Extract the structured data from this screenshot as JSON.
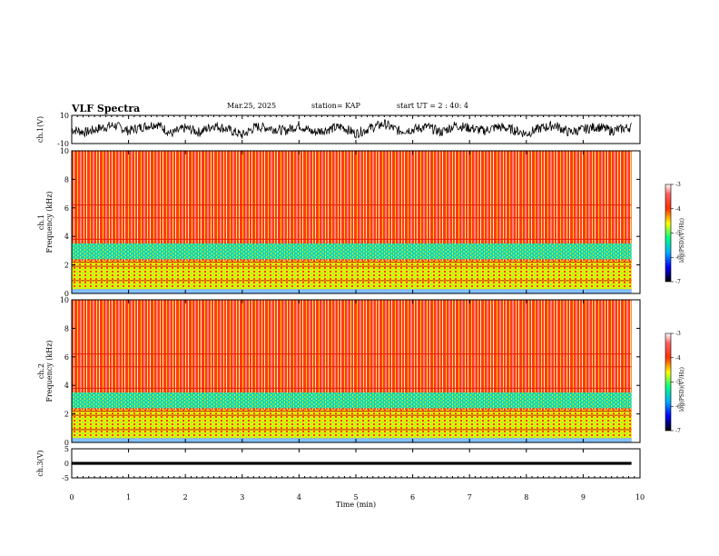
{
  "header": {
    "title": "VLF Spectra",
    "date": "Mar.25, 2025",
    "station": "station= KAP",
    "start": "start  UT  =   2  : 40: 4"
  },
  "chart_data": [
    {
      "type": "line",
      "panel": "ch1-waveform",
      "ylabel": "ch.1(V)",
      "ylim": [
        -10,
        10
      ],
      "yticks": [
        10,
        -10
      ],
      "xlim": [
        0,
        9.85
      ],
      "x": [
        0,
        0.25,
        0.5,
        0.75,
        1,
        1.25,
        1.5,
        1.75,
        2,
        2.25,
        2.5,
        2.75,
        3,
        3.25,
        3.5,
        3.75,
        4,
        4.25,
        4.5,
        4.75,
        5,
        5.25,
        5.5,
        5.75,
        6,
        6.25,
        6.5,
        6.75,
        7,
        7.25,
        7.5,
        7.75,
        8,
        8.25,
        8.5,
        8.75,
        9,
        9.25,
        9.5,
        9.75
      ],
      "y": [
        0,
        -2,
        1,
        3,
        -1,
        2,
        4,
        -3,
        1,
        -2,
        3,
        0,
        -4,
        2,
        1,
        -1,
        3,
        -2,
        0,
        2,
        -3,
        1,
        4,
        -1,
        0,
        2,
        -2,
        3,
        1,
        -1,
        2,
        0,
        -3,
        1,
        3,
        -2,
        0,
        2,
        -1,
        1
      ]
    },
    {
      "type": "heatmap",
      "panel": "ch1-spectrogram",
      "ylabel": "ch.1\nFrequency (kHz)",
      "ylim": [
        0,
        10
      ],
      "yticks": [
        "0",
        "2",
        "4",
        "6",
        "8",
        "10"
      ],
      "xlim": [
        0,
        9.85
      ],
      "colorbar": {
        "label": "log(PSD)(V²/Hz)",
        "ticks": [
          "-3",
          "-4",
          "-5",
          "-6",
          "-7"
        ],
        "range": [
          -7,
          -3
        ]
      }
    },
    {
      "type": "heatmap",
      "panel": "ch2-spectrogram",
      "ylabel": "ch.2\nFrequency (kHz)",
      "ylim": [
        0,
        10
      ],
      "yticks": [
        "0",
        "2",
        "4",
        "6",
        "8",
        "10"
      ],
      "xlim": [
        0,
        9.85
      ],
      "colorbar": {
        "label": "log(PSD)(V²/Hz)",
        "ticks": [
          "-3",
          "-4",
          "-5",
          "-6",
          "-7"
        ],
        "range": [
          -7,
          -3
        ]
      }
    },
    {
      "type": "line",
      "panel": "ch3-waveform",
      "ylabel": "ch.3(V)",
      "ylim": [
        -5,
        5
      ],
      "yticks": [
        "5",
        "0",
        "-5"
      ],
      "xlim": [
        0,
        9.85
      ],
      "x": [
        0,
        9.85
      ],
      "y": [
        0,
        0
      ]
    }
  ],
  "xaxis": {
    "label": "Time (min)",
    "ticks": [
      "0",
      "1",
      "2",
      "3",
      "4",
      "5",
      "6",
      "7",
      "8",
      "9",
      "10"
    ]
  }
}
